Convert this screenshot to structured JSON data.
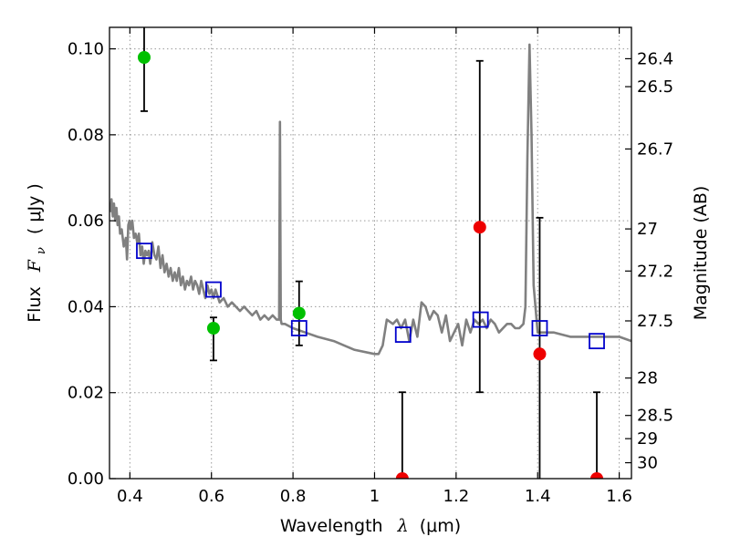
{
  "chart_data": {
    "type": "scatter",
    "title": "",
    "xlabel_prefix": "Wavelength",
    "xlabel_symbol": "λ",
    "xlabel_unit": "(μm)",
    "ylabel_prefix": "Flux",
    "ylabel_symbol": "F",
    "ylabel_subscript": "ν",
    "ylabel_unit": "( μJy )",
    "y2label": "Magnitude (AB)",
    "xlim": [
      0.35,
      1.63
    ],
    "ylim": [
      0.0,
      0.105
    ],
    "grid": true,
    "x_ticks": [
      0.4,
      0.6,
      0.8,
      1.0,
      1.2,
      1.4,
      1.6
    ],
    "x_tick_labels": [
      "0.4",
      "0.6",
      "0.8",
      "1",
      "1.2",
      "1.4",
      "1.6"
    ],
    "y_ticks": [
      0.0,
      0.02,
      0.04,
      0.06,
      0.08,
      0.1
    ],
    "y_tick_labels": [
      "0.00",
      "0.02",
      "0.04",
      "0.06",
      "0.08",
      "0.10"
    ],
    "mag_ticks": [
      {
        "label": "26.4",
        "flux": 0.0977
      },
      {
        "label": "26.5",
        "flux": 0.0912
      },
      {
        "label": "26.7",
        "flux": 0.0767
      },
      {
        "label": "27",
        "flux": 0.0581
      },
      {
        "label": "27.2",
        "flux": 0.0483
      },
      {
        "label": "27.5",
        "flux": 0.0367
      },
      {
        "label": "28",
        "flux": 0.0234
      },
      {
        "label": "28.5",
        "flux": 0.0147
      },
      {
        "label": "29",
        "flux": 0.0093
      },
      {
        "label": "30",
        "flux": 0.0037
      }
    ],
    "colors": {
      "model": "#808080",
      "detection": "#00c000",
      "upper_limit": "#ee0000",
      "model_photometry": "#0000cc",
      "errorbar": "#000000",
      "grid": "#9a9a9a"
    },
    "series": [
      {
        "kind": "sed-model",
        "x": [
          0.352,
          0.355,
          0.358,
          0.361,
          0.364,
          0.367,
          0.37,
          0.373,
          0.376,
          0.38,
          0.385,
          0.39,
          0.393,
          0.396,
          0.399,
          0.402,
          0.406,
          0.41,
          0.414,
          0.418,
          0.422,
          0.426,
          0.43,
          0.434,
          0.438,
          0.442,
          0.446,
          0.45,
          0.455,
          0.46,
          0.465,
          0.47,
          0.475,
          0.48,
          0.485,
          0.49,
          0.495,
          0.5,
          0.505,
          0.51,
          0.515,
          0.52,
          0.525,
          0.53,
          0.535,
          0.54,
          0.545,
          0.55,
          0.555,
          0.56,
          0.565,
          0.57,
          0.575,
          0.58,
          0.585,
          0.59,
          0.595,
          0.6,
          0.605,
          0.61,
          0.62,
          0.63,
          0.64,
          0.65,
          0.66,
          0.67,
          0.68,
          0.69,
          0.7,
          0.71,
          0.72,
          0.73,
          0.74,
          0.75,
          0.76,
          0.766,
          0.768,
          0.77,
          0.772,
          0.78,
          0.8,
          0.83,
          0.86,
          0.9,
          0.95,
          1.0,
          1.01,
          1.02,
          1.03,
          1.045,
          1.055,
          1.065,
          1.075,
          1.085,
          1.095,
          1.105,
          1.115,
          1.125,
          1.135,
          1.145,
          1.155,
          1.165,
          1.175,
          1.185,
          1.195,
          1.205,
          1.215,
          1.225,
          1.235,
          1.245,
          1.255,
          1.265,
          1.275,
          1.285,
          1.295,
          1.305,
          1.315,
          1.325,
          1.335,
          1.345,
          1.355,
          1.365,
          1.37,
          1.375,
          1.38,
          1.385,
          1.39,
          1.4,
          1.42,
          1.44,
          1.48,
          1.52,
          1.56,
          1.6,
          1.63
        ],
        "y": [
          0.062,
          0.065,
          0.061,
          0.064,
          0.06,
          0.063,
          0.059,
          0.061,
          0.057,
          0.058,
          0.054,
          0.056,
          0.051,
          0.059,
          0.06,
          0.058,
          0.06,
          0.056,
          0.057,
          0.055,
          0.057,
          0.052,
          0.054,
          0.05,
          0.053,
          0.052,
          0.053,
          0.05,
          0.055,
          0.052,
          0.051,
          0.054,
          0.049,
          0.052,
          0.048,
          0.05,
          0.047,
          0.049,
          0.046,
          0.048,
          0.046,
          0.049,
          0.045,
          0.047,
          0.044,
          0.046,
          0.045,
          0.047,
          0.044,
          0.046,
          0.045,
          0.043,
          0.046,
          0.044,
          0.042,
          0.045,
          0.043,
          0.044,
          0.042,
          0.044,
          0.041,
          0.042,
          0.04,
          0.041,
          0.04,
          0.039,
          0.04,
          0.039,
          0.038,
          0.039,
          0.037,
          0.038,
          0.037,
          0.038,
          0.037,
          0.037,
          0.083,
          0.037,
          0.036,
          0.036,
          0.035,
          0.034,
          0.033,
          0.032,
          0.03,
          0.029,
          0.029,
          0.031,
          0.037,
          0.036,
          0.037,
          0.035,
          0.037,
          0.032,
          0.037,
          0.033,
          0.041,
          0.04,
          0.037,
          0.039,
          0.038,
          0.034,
          0.038,
          0.032,
          0.034,
          0.036,
          0.031,
          0.037,
          0.034,
          0.037,
          0.036,
          0.037,
          0.035,
          0.037,
          0.036,
          0.034,
          0.035,
          0.036,
          0.036,
          0.035,
          0.035,
          0.036,
          0.04,
          0.075,
          0.101,
          0.08,
          0.045,
          0.034,
          0.034,
          0.034,
          0.033,
          0.033,
          0.033,
          0.033,
          0.032
        ]
      },
      {
        "kind": "model-photometry",
        "x": [
          0.435,
          0.605,
          0.815,
          1.07,
          1.26,
          1.405,
          1.545
        ],
        "y": [
          0.053,
          0.044,
          0.035,
          0.0335,
          0.037,
          0.035,
          0.032
        ]
      },
      {
        "kind": "detection",
        "x": [
          0.435,
          0.605,
          0.815
        ],
        "y": [
          0.098,
          0.035,
          0.0385
        ],
        "yerr_low": [
          0.0855,
          0.0275,
          0.031
        ],
        "yerr_high": [
          0.105,
          0.0375,
          0.0459
        ]
      },
      {
        "kind": "upper-limit",
        "x": [
          1.068,
          1.258,
          1.405,
          1.545
        ],
        "y": [
          0.0,
          0.0585,
          0.029,
          0.0
        ],
        "yerr_low": [
          0.0,
          0.0201,
          0.0,
          0.0
        ],
        "yerr_high": [
          0.0201,
          0.0972,
          0.0607,
          0.0201
        ]
      }
    ]
  }
}
